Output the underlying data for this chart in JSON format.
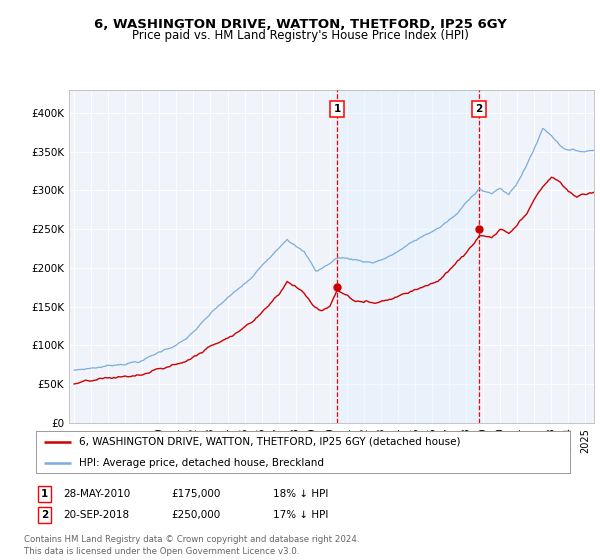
{
  "title": "6, WASHINGTON DRIVE, WATTON, THETFORD, IP25 6GY",
  "subtitle": "Price paid vs. HM Land Registry's House Price Index (HPI)",
  "legend_line1": "6, WASHINGTON DRIVE, WATTON, THETFORD, IP25 6GY (detached house)",
  "legend_line2": "HPI: Average price, detached house, Breckland",
  "annotation1_label": "1",
  "annotation1_date": "28-MAY-2010",
  "annotation1_price": "£175,000",
  "annotation1_hpi": "18% ↓ HPI",
  "annotation1_year": 2010.42,
  "annotation1_price_val": 175000,
  "annotation2_label": "2",
  "annotation2_date": "20-SEP-2018",
  "annotation2_price": "£250,000",
  "annotation2_hpi": "17% ↓ HPI",
  "annotation2_year": 2018.75,
  "annotation2_price_val": 250000,
  "footer": "Contains HM Land Registry data © Crown copyright and database right 2024.\nThis data is licensed under the Open Government Licence v3.0.",
  "hpi_color": "#7aaddc",
  "price_color": "#cc0000",
  "shade_color": "#ddeeff",
  "background_color": "#ffffff",
  "plot_bg_color": "#f0f4fa",
  "ylim": [
    0,
    430000
  ],
  "yticks": [
    0,
    50000,
    100000,
    150000,
    200000,
    250000,
    300000,
    350000,
    400000
  ],
  "xlim_start": 1994.7,
  "xlim_end": 2025.5
}
